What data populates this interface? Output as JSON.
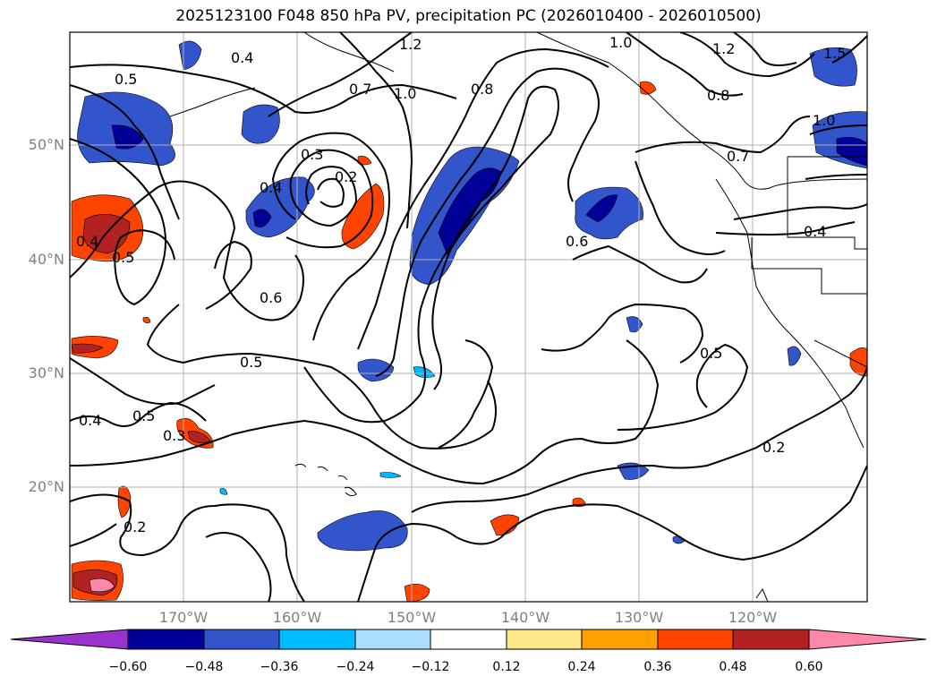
{
  "title": "2025123100 F048 850 hPa PV, precipitation PC (2026010400 - 2026010500)",
  "map": {
    "lon_labels": [
      "170°W",
      "160°W",
      "150°W",
      "140°W",
      "130°W",
      "120°W"
    ],
    "lat_labels": [
      "50°N",
      "40°N",
      "30°N",
      "20°N"
    ],
    "contour_labels": [
      "0.5",
      "0.5",
      "0.4",
      "0.4",
      "0.3",
      "0.2",
      "0.4",
      "0.6",
      "0.5",
      "0.5",
      "0.3",
      "0.2",
      "0.4",
      "0.7",
      "1.0",
      "1.2",
      "0.8",
      "1.0",
      "1.2",
      "0.8",
      "1.0",
      "0.7",
      "0.6",
      "0.4",
      "0.5",
      "0.2",
      "1.5"
    ]
  },
  "colorbar": {
    "tick_labels": [
      "−0.60",
      "−0.48",
      "−0.36",
      "−0.24",
      "−0.12",
      "0.12",
      "0.24",
      "0.36",
      "0.48",
      "0.60"
    ],
    "colors": [
      "#9933cc",
      "#000099",
      "#3355cc",
      "#00bbff",
      "#aaddff",
      "#ffffff",
      "#ffe888",
      "#ffa000",
      "#ff4400",
      "#b22222",
      "#ff88aa"
    ]
  }
}
